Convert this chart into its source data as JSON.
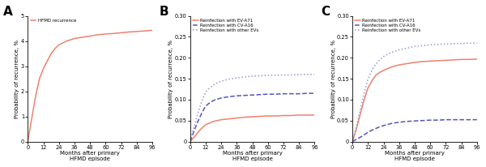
{
  "panel_A": {
    "label": "HFMD recurrence",
    "color": "#f08070",
    "linestyle": "solid",
    "x": [
      0,
      3,
      6,
      9,
      12,
      15,
      18,
      21,
      24,
      30,
      36,
      42,
      48,
      54,
      60,
      66,
      72,
      78,
      84,
      90,
      96
    ],
    "y": [
      0,
      0.9,
      1.8,
      2.5,
      2.9,
      3.2,
      3.5,
      3.7,
      3.85,
      4.0,
      4.1,
      4.15,
      4.2,
      4.25,
      4.28,
      4.3,
      4.33,
      4.36,
      4.38,
      4.4,
      4.43
    ],
    "ylim": [
      0,
      5
    ],
    "yticks": [
      0,
      1,
      2,
      3,
      4,
      5
    ],
    "ylabel": "Probability of recurrence, %",
    "xlabel": "Months after primary\nHFMD episode",
    "xticks": [
      0,
      12,
      24,
      36,
      48,
      60,
      72,
      84,
      96
    ],
    "title": "A"
  },
  "panel_B": {
    "lines": [
      {
        "label": "Reinfection with EV-A71",
        "color": "#f08070",
        "linestyle": "solid",
        "x": [
          0,
          3,
          6,
          9,
          12,
          15,
          18,
          21,
          24,
          30,
          36,
          42,
          48,
          54,
          60,
          66,
          72,
          78,
          84,
          90,
          96
        ],
        "y": [
          0,
          0.01,
          0.022,
          0.032,
          0.04,
          0.044,
          0.048,
          0.05,
          0.052,
          0.054,
          0.056,
          0.058,
          0.059,
          0.06,
          0.061,
          0.061,
          0.062,
          0.062,
          0.063,
          0.063,
          0.063
        ]
      },
      {
        "label": "Reinfection with CV-A16",
        "color": "#5555bb",
        "linestyle": "dashed",
        "x": [
          0,
          3,
          6,
          9,
          12,
          15,
          18,
          21,
          24,
          30,
          36,
          42,
          48,
          54,
          60,
          66,
          72,
          78,
          84,
          90,
          96
        ],
        "y": [
          0,
          0.025,
          0.048,
          0.068,
          0.085,
          0.092,
          0.098,
          0.101,
          0.104,
          0.107,
          0.109,
          0.11,
          0.111,
          0.112,
          0.113,
          0.113,
          0.114,
          0.114,
          0.114,
          0.115,
          0.115
        ]
      },
      {
        "label": "Reinfection with other EVs",
        "color": "#9999cc",
        "linestyle": "dotted",
        "x": [
          0,
          3,
          6,
          9,
          12,
          15,
          18,
          21,
          24,
          30,
          36,
          42,
          48,
          54,
          60,
          66,
          72,
          78,
          84,
          90,
          96
        ],
        "y": [
          0,
          0.035,
          0.068,
          0.096,
          0.118,
          0.128,
          0.135,
          0.14,
          0.144,
          0.149,
          0.152,
          0.154,
          0.156,
          0.157,
          0.158,
          0.158,
          0.159,
          0.159,
          0.16,
          0.16,
          0.16
        ]
      }
    ],
    "ylim": [
      0,
      0.3
    ],
    "yticks": [
      0,
      0.05,
      0.1,
      0.15,
      0.2,
      0.25,
      0.3
    ],
    "ytick_labels": [
      "0",
      "0.05",
      "0.10",
      "0.15",
      "0.20",
      "0.25",
      "0.30"
    ],
    "ylabel": "Probability of recurrence, %",
    "xlabel": "Months after primary\nHFMD episode",
    "xticks": [
      0,
      12,
      24,
      36,
      48,
      60,
      72,
      84,
      96
    ],
    "title": "B"
  },
  "panel_C": {
    "lines": [
      {
        "label": "Reinfection with EV-A71",
        "color": "#f08070",
        "linestyle": "solid",
        "x": [
          0,
          3,
          6,
          9,
          12,
          15,
          18,
          21,
          24,
          30,
          36,
          42,
          48,
          54,
          60,
          66,
          72,
          78,
          84,
          90,
          96
        ],
        "y": [
          0,
          0.03,
          0.065,
          0.1,
          0.128,
          0.145,
          0.158,
          0.165,
          0.17,
          0.178,
          0.183,
          0.186,
          0.189,
          0.191,
          0.192,
          0.193,
          0.194,
          0.195,
          0.196,
          0.196,
          0.197
        ]
      },
      {
        "label": "Reinfection with CV-A16",
        "color": "#5555bb",
        "linestyle": "dashed",
        "x": [
          0,
          3,
          6,
          9,
          12,
          15,
          18,
          21,
          24,
          30,
          36,
          42,
          48,
          54,
          60,
          66,
          72,
          78,
          84,
          90,
          96
        ],
        "y": [
          0,
          0.005,
          0.01,
          0.016,
          0.022,
          0.027,
          0.031,
          0.035,
          0.038,
          0.043,
          0.046,
          0.048,
          0.049,
          0.05,
          0.051,
          0.051,
          0.052,
          0.052,
          0.052,
          0.052,
          0.052
        ]
      },
      {
        "label": "Reinfection with other EVs",
        "color": "#9999cc",
        "linestyle": "dotted",
        "x": [
          0,
          3,
          6,
          9,
          12,
          15,
          18,
          21,
          24,
          30,
          36,
          42,
          48,
          54,
          60,
          66,
          72,
          78,
          84,
          90,
          96
        ],
        "y": [
          0,
          0.035,
          0.075,
          0.115,
          0.15,
          0.17,
          0.185,
          0.195,
          0.203,
          0.213,
          0.219,
          0.223,
          0.227,
          0.229,
          0.231,
          0.232,
          0.233,
          0.234,
          0.234,
          0.235,
          0.235
        ]
      }
    ],
    "ylim": [
      0,
      0.3
    ],
    "yticks": [
      0,
      0.05,
      0.1,
      0.15,
      0.2,
      0.25,
      0.3
    ],
    "ytick_labels": [
      "0",
      "0.05",
      "0.10",
      "0.15",
      "0.20",
      "0.25",
      "0.30"
    ],
    "ylabel": "Probability of recurrence, %",
    "xlabel": "Months after primary\nHFMD episode",
    "xticks": [
      0,
      12,
      24,
      36,
      48,
      60,
      72,
      84,
      96
    ],
    "title": "C"
  },
  "background_color": "#ffffff",
  "panel_bg": "#ffffff"
}
